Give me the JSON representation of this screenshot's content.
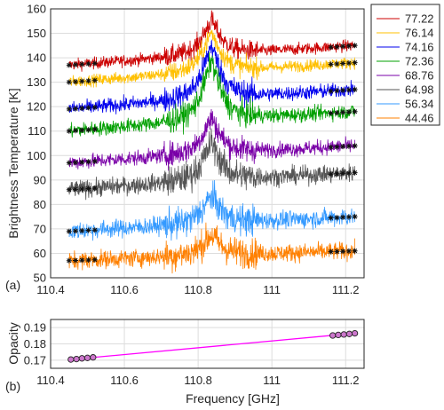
{
  "chart_data": [
    {
      "type": "line",
      "panel_label": "(a)",
      "xlabel": "",
      "ylabel": "Brightness Temperature [K]",
      "xlim": [
        110.4,
        111.25
      ],
      "ylim": [
        50,
        160
      ],
      "xticks": [
        110.4,
        110.6,
        110.8,
        111.0,
        111.2
      ],
      "xtick_labels": [
        "110.4",
        "110.6",
        "110.8",
        "111",
        "111.2"
      ],
      "yticks": [
        50,
        60,
        70,
        80,
        90,
        100,
        110,
        120,
        130,
        140,
        150,
        160
      ],
      "yticks_labels": [
        "50",
        "60",
        "70",
        "80",
        "90",
        "100",
        "110",
        "120",
        "130",
        "140",
        "150",
        "160"
      ],
      "grid": true,
      "legend_position": "outside-right",
      "x_start": 110.45,
      "x_end": 111.225,
      "peak_frequency": 110.836,
      "data_gap_before": [
        110.72,
        110.96
      ],
      "baseline_marker_ranges": [
        [
          110.45,
          110.52
        ],
        [
          111.16,
          111.225
        ]
      ],
      "series": [
        {
          "name": "77.22",
          "color": "#cc0000",
          "start": 137,
          "end": 145,
          "peak": 156,
          "noise": 1.2
        },
        {
          "name": "76.14",
          "color": "#ffc000",
          "start": 130,
          "end": 138,
          "peak": 151,
          "noise": 1.2
        },
        {
          "name": "74.16",
          "color": "#0000ee",
          "start": 119,
          "end": 127,
          "peak": 146,
          "noise": 1.5
        },
        {
          "name": "72.36",
          "color": "#00a000",
          "start": 110,
          "end": 118,
          "peak": 140,
          "noise": 1.5
        },
        {
          "name": "68.76",
          "color": "#7a00a8",
          "start": 97,
          "end": 104,
          "peak": 116,
          "noise": 1.5
        },
        {
          "name": "64.98",
          "color": "#555555",
          "start": 86,
          "end": 93,
          "peak": 106,
          "noise": 1.8
        },
        {
          "name": "56.34",
          "color": "#3399ff",
          "start": 69,
          "end": 75,
          "peak": 84,
          "noise": 1.8
        },
        {
          "name": "44.46",
          "color": "#ff8000",
          "start": 57,
          "end": 61,
          "peak": 68,
          "noise": 1.8
        }
      ]
    },
    {
      "type": "line",
      "panel_label": "(b)",
      "xlabel": "Frequency [GHz]",
      "ylabel": "Opacity",
      "xlim": [
        110.4,
        111.25
      ],
      "ylim": [
        0.165,
        0.195
      ],
      "xticks": [
        110.4,
        110.6,
        110.8,
        111.0,
        111.2
      ],
      "xtick_labels": [
        "110.4",
        "110.6",
        "110.8",
        "111",
        "111.2"
      ],
      "yticks": [
        0.17,
        0.18,
        0.19
      ],
      "ytick_labels": [
        "0.17",
        "0.18",
        "0.19"
      ],
      "grid": true,
      "fit_line": {
        "color": "#ff00ff",
        "x": [
          110.45,
          111.225
        ],
        "y": [
          0.1703,
          0.1865
        ]
      },
      "points": {
        "x": [
          110.455,
          110.47,
          110.485,
          110.5,
          110.515,
          111.165,
          111.18,
          111.195,
          111.21,
          111.225
        ],
        "y": [
          0.1704,
          0.1707,
          0.1711,
          0.1714,
          0.1717,
          0.1852,
          0.1855,
          0.1858,
          0.1861,
          0.1865
        ],
        "fill": "#cc77cc"
      }
    }
  ]
}
